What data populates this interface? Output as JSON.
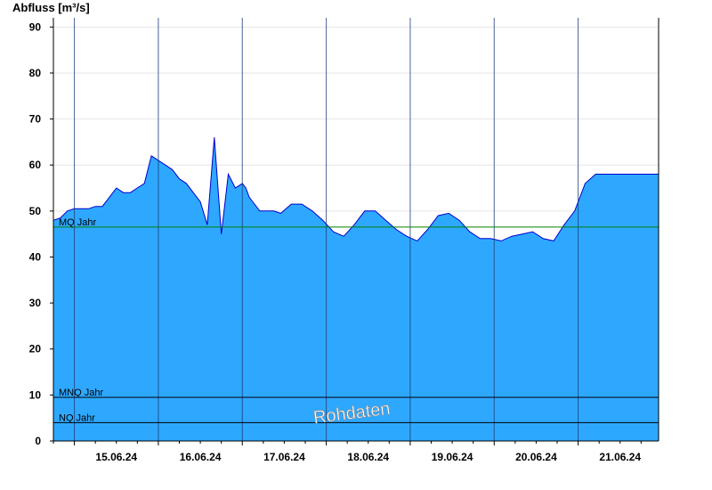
{
  "chart_data": {
    "type": "area",
    "ylabel": "Abfluss [m³/s]",
    "ylim": [
      0,
      92
    ],
    "yticks": [
      0,
      10,
      20,
      30,
      40,
      50,
      60,
      70,
      80,
      90
    ],
    "x_tick_labels": [
      "15.06.24",
      "16.06.24",
      "17.06.24",
      "18.06.24",
      "19.06.24",
      "20.06.24",
      "21.06.24"
    ],
    "x_range": [
      "14.06.24 18:00",
      "21.06.24 23:00"
    ],
    "grid": "horizontal",
    "watermark": "Rohdaten",
    "colors": {
      "fill": "#2ea8ff",
      "line": "#0000cc",
      "mq": "#008000",
      "ref": "#000000"
    },
    "reference_lines": [
      {
        "label": "MQ Jahr",
        "value": 46.5
      },
      {
        "label": "MNQ Jahr",
        "value": 9.5
      },
      {
        "label": "NQ Jahr",
        "value": 4.0
      }
    ],
    "series": [
      {
        "x": [
          "14.06.24 18:00",
          "14.06.24 20:00",
          "14.06.24 22:00",
          "15.06.24 00:00",
          "15.06.24 02:00",
          "15.06.24 04:00",
          "15.06.24 06:00",
          "15.06.24 08:00",
          "15.06.24 10:00",
          "15.06.24 12:00",
          "15.06.24 14:00",
          "15.06.24 16:00",
          "15.06.24 18:00",
          "15.06.24 20:00",
          "15.06.24 22:00",
          "16.06.24 00:00",
          "16.06.24 02:00",
          "16.06.24 04:00",
          "16.06.24 06:00",
          "16.06.24 08:00",
          "16.06.24 10:00",
          "16.06.24 12:00",
          "16.06.24 14:00",
          "16.06.24 16:00",
          "16.06.24 18:00",
          "16.06.24 20:00",
          "16.06.24 22:00",
          "17.06.24 00:00",
          "17.06.24 01:00",
          "17.06.24 02:00",
          "17.06.24 03:00",
          "17.06.24 05:00",
          "17.06.24 07:00",
          "17.06.24 09:00",
          "17.06.24 11:00",
          "17.06.24 14:00",
          "17.06.24 17:00",
          "17.06.24 20:00",
          "17.06.24 23:00",
          "18.06.24 02:00",
          "18.06.24 05:00",
          "18.06.24 08:00",
          "18.06.24 11:00",
          "18.06.24 14:00",
          "18.06.24 17:00",
          "18.06.24 20:00",
          "18.06.24 23:00",
          "19.06.24 02:00",
          "19.06.24 05:00",
          "19.06.24 08:00",
          "19.06.24 11:00",
          "19.06.24 14:00",
          "19.06.24 17:00",
          "19.06.24 20:00",
          "19.06.24 23:00",
          "20.06.24 02:00",
          "20.06.24 05:00",
          "20.06.24 08:00",
          "20.06.24 11:00",
          "20.06.24 14:00",
          "20.06.24 17:00",
          "20.06.24 20:00",
          "20.06.24 23:00",
          "21.06.24 02:00",
          "21.06.24 05:00",
          "21.06.24 08:00",
          "21.06.24 11:00",
          "21.06.24 14:00",
          "21.06.24 17:00",
          "21.06.24 19:00",
          "21.06.24 21:00",
          "21.06.24 22:00",
          "21.06.24 23:00"
        ],
        "y": [
          48,
          48.5,
          50,
          50.5,
          50.5,
          50.5,
          51,
          51,
          53,
          55,
          54,
          54,
          55,
          56,
          62,
          61,
          60,
          59,
          57,
          56,
          54,
          52,
          47,
          66,
          45,
          58,
          55,
          56,
          55,
          53,
          52,
          50,
          50,
          50,
          49.5,
          51.5,
          51.5,
          50,
          48,
          45.5,
          44.5,
          47,
          50,
          50,
          48,
          46,
          44.5,
          43.5,
          46,
          49,
          49.5,
          48,
          45.5,
          44,
          44,
          43.5,
          44.5,
          45,
          45.5,
          44,
          43.5,
          47,
          50,
          56,
          58,
          58,
          58,
          58,
          58,
          58,
          58,
          58,
          58
        ]
      }
    ]
  }
}
